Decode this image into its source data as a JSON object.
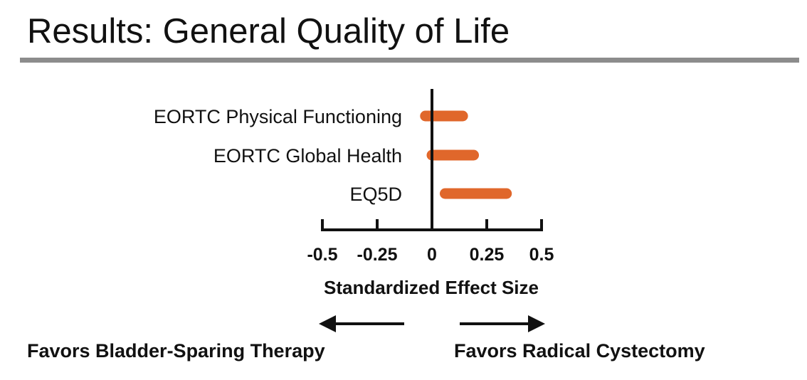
{
  "slide": {
    "title": "Results: General Quality of Life"
  },
  "colors": {
    "bar": "#e0672b",
    "axis": "#111111",
    "rule": "#8c8c8c"
  },
  "chart_data": {
    "type": "forest",
    "title": "",
    "xlabel": "Standardized Effect Size",
    "ylabel": "",
    "xlim": [
      -0.5,
      0.5
    ],
    "ticks": [
      -0.5,
      -0.25,
      0,
      0.25,
      0.5
    ],
    "tick_labels": [
      "-0.5",
      "-0.25",
      "0",
      "0.25",
      "0.5"
    ],
    "reference_line": 0,
    "series": [
      {
        "name": "EORTC Physical Functioning",
        "low": -0.03,
        "high": 0.14
      },
      {
        "name": "EORTC Global Health",
        "low": 0.0,
        "high": 0.19
      },
      {
        "name": "EQ5D",
        "low": 0.06,
        "high": 0.34
      }
    ],
    "annotations": {
      "left_direction": "Favors Bladder-Sparing Therapy",
      "right_direction": "Favors Radical Cystectomy"
    }
  }
}
